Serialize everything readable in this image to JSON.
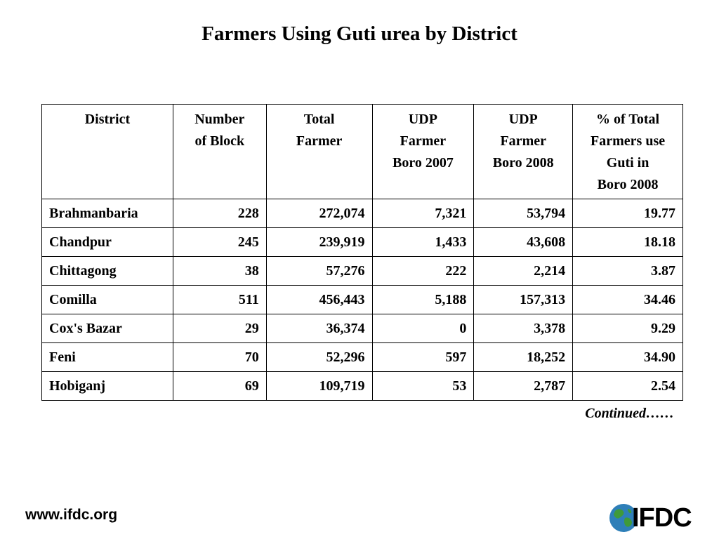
{
  "title": "Farmers Using Guti urea by District",
  "table": {
    "headers": [
      [
        "District"
      ],
      [
        "Number",
        "of Block"
      ],
      [
        "Total",
        "Farmer"
      ],
      [
        "UDP",
        "Farmer",
        "Boro 2007"
      ],
      [
        "UDP",
        "Farmer",
        "Boro 2008"
      ],
      [
        "% of Total",
        "Farmers use",
        "Guti in",
        "Boro 2008"
      ]
    ],
    "rows": [
      [
        "Brahmanbaria",
        "228",
        "272,074",
        "7,321",
        "53,794",
        "19.77"
      ],
      [
        "Chandpur",
        "245",
        "239,919",
        "1,433",
        "43,608",
        "18.18"
      ],
      [
        "Chittagong",
        "38",
        "57,276",
        "222",
        "2,214",
        "3.87"
      ],
      [
        "Comilla",
        "511",
        "456,443",
        "5,188",
        "157,313",
        "34.46"
      ],
      [
        "Cox's Bazar",
        "29",
        "36,374",
        "0",
        "3,378",
        "9.29"
      ],
      [
        "Feni",
        "70",
        "52,296",
        "597",
        "18,252",
        "34.90"
      ],
      [
        "Hobiganj",
        "69",
        "109,719",
        "53",
        "2,787",
        "2.54"
      ]
    ]
  },
  "continued_label": "Continued……",
  "website": "www.ifdc.org",
  "logo": {
    "text": "IFDC",
    "globe_colors": {
      "ocean": "#2e7fb8",
      "land": "#3f9a3a"
    }
  }
}
